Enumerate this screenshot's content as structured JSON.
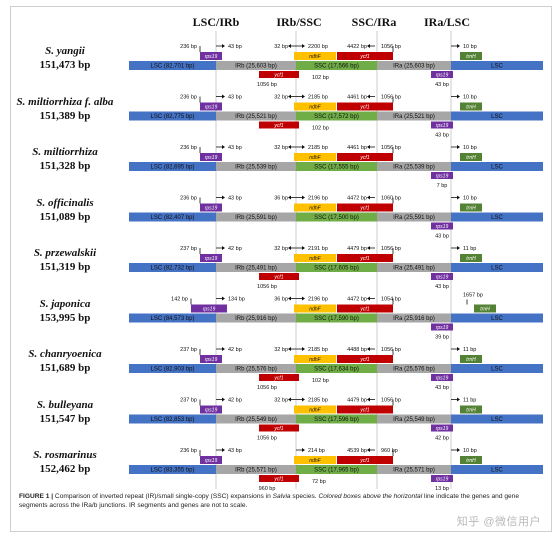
{
  "junctions": [
    "LSC/IRb",
    "IRb/SSC",
    "SSC/IRa",
    "IRa/LSC"
  ],
  "colors": {
    "lsc": "#4472c4",
    "ir": "#a6a6a6",
    "ssc": "#70ad47",
    "rps19": "#7030a0",
    "ndhF": "#ffc000",
    "ycf1": "#c00000",
    "trnH": "#548235"
  },
  "species": [
    {
      "name": "S. yangii",
      "size": "151,473 bp",
      "lsc": "LSC (82,701 bp)",
      "irb": "IRb (25,603 bp)",
      "ssc": "SSC (17,566 bp)",
      "ira": "IRa (25,603 bp)",
      "lsc2": "LSC",
      "rps19_left": "236 bp",
      "rps19_right": "43 bp",
      "irb_ssc_left": "32 bp",
      "ndhF": "2200 bp",
      "ycf1_frag": "1056 bp",
      "ycf1_frag_r": "102 bp",
      "ssc_ira_left": "4422 bp",
      "ssc_ira_right": "1056 bp",
      "rps19_ira": "43 bp",
      "trnH": "10 bp",
      "variant": "normal"
    },
    {
      "name": "S. miltiorrhiza f. alba",
      "size": "151,389 bp",
      "lsc": "LSC (82,775 bp)",
      "irb": "IRb (25,521 bp)",
      "ssc": "SSC (17,572 bp)",
      "ira": "IRa (25,521 bp)",
      "lsc2": "LSC",
      "rps19_left": "236 bp",
      "rps19_right": "43 bp",
      "irb_ssc_left": "32 bp",
      "ndhF": "2185 bp",
      "ycf1_frag": "",
      "ycf1_frag_r": "102 bp",
      "ssc_ira_left": "4461 bp",
      "ssc_ira_right": "1056 bp",
      "rps19_ira": "43 bp",
      "trnH": "10 bp",
      "variant": "normal"
    },
    {
      "name": "S. miltiorrhiza",
      "size": "151,328 bp",
      "lsc": "LSC (82,695 bp)",
      "irb": "IRb (25,539 bp)",
      "ssc": "SSC (17,555 bp)",
      "ira": "IRa (25,539 bp)",
      "lsc2": "LSC",
      "rps19_left": "236 bp",
      "rps19_right": "43 bp",
      "irb_ssc_left": "32 bp",
      "ndhF": "2185 bp",
      "ycf1_frag": "",
      "ycf1_frag_r": "",
      "ssc_ira_left": "4461 bp",
      "ssc_ira_right": "1056 bp",
      "rps19_ira": "7 bp",
      "trnH": "10 bp",
      "variant": "normal"
    },
    {
      "name": "S. officinalis",
      "size": "151,089 bp",
      "lsc": "LSC (82,407 bp)",
      "irb": "IRb (25,591 bp)",
      "ssc": "SSC (17,500 bp)",
      "ira": "IRa (25,591 bp)",
      "lsc2": "LSC",
      "rps19_left": "236 bp",
      "rps19_right": "43 bp",
      "irb_ssc_left": "36 bp",
      "ndhF": "2196 bp",
      "ycf1_frag": "",
      "ycf1_frag_r": "",
      "ssc_ira_left": "4472 bp",
      "ssc_ira_right": "1060 bp",
      "rps19_ira": "43 bp",
      "trnH": "10 bp",
      "variant": "normal"
    },
    {
      "name": "S. przewalskii",
      "size": "151,319 bp",
      "lsc": "LSC (82,732 bp)",
      "irb": "IRb (25,491 bp)",
      "ssc": "SSC (17,605 bp)",
      "ira": "IRa (25,491 bp)",
      "lsc2": "LSC",
      "rps19_left": "237 bp",
      "rps19_right": "42 bp",
      "irb_ssc_left": "32 bp",
      "ndhF": "2191 bp",
      "ycf1_frag": "1056 bp",
      "ycf1_frag_r": "",
      "ssc_ira_left": "4479 bp",
      "ssc_ira_right": "1056 bp",
      "rps19_ira": "43 bp",
      "trnH": "11 bp",
      "variant": "normal"
    },
    {
      "name": "S. japonica",
      "size": "153,995 bp",
      "lsc": "LSC (84,573 bp)",
      "irb": "IRb (25,916 bp)",
      "ssc": "SSC (17,590 bp)",
      "ira": "IRa (25,916 bp)",
      "lsc2": "LSC",
      "rps19_left": "142 bp",
      "rps19_right": "134 bp",
      "irb_ssc_left": "36 bp",
      "ndhF": "2196 bp",
      "ycf1_frag": "",
      "ycf1_frag_r": "",
      "ssc_ira_left": "4472 bp",
      "ssc_ira_right": "1054 bp",
      "rps19_ira": "39 bp",
      "trnH": "1657 bp",
      "variant": "japonica"
    },
    {
      "name": "S. chanryoenica",
      "size": "151,689 bp",
      "lsc": "LSC (82,903 bp)",
      "irb": "IRb (25,576 bp)",
      "ssc": "SSC (17,634 bp)",
      "ira": "IRa (25,576 bp)",
      "lsc2": "LSC",
      "rps19_left": "237 bp",
      "rps19_right": "42 bp",
      "irb_ssc_left": "32 bp",
      "ndhF": "2185 bp",
      "ycf1_frag": "1056 bp",
      "ycf1_frag_r": "102 bp",
      "ssc_ira_left": "4488 bp",
      "ssc_ira_right": "1056 bp",
      "rps19_ira": "43 bp",
      "trnH": "11 bp",
      "variant": "normal"
    },
    {
      "name": "S. bulleyana",
      "size": "151,547 bp",
      "lsc": "LSC (82,853 bp)",
      "irb": "IRb (25,549 bp)",
      "ssc": "SSC (17,596 bp)",
      "ira": "IRa (25,549 bp)",
      "lsc2": "LSC",
      "rps19_left": "237 bp",
      "rps19_right": "42 bp",
      "irb_ssc_left": "32 bp",
      "ndhF": "2185 bp",
      "ycf1_frag": "1056 bp",
      "ycf1_frag_r": "",
      "ssc_ira_left": "4479 bp",
      "ssc_ira_right": "1056 bp",
      "rps19_ira": "42 bp",
      "trnH": "11 bp",
      "variant": "normal"
    },
    {
      "name": "S. rosmarinus",
      "size": "152,462 bp",
      "lsc": "LSC (83,355 bp)",
      "irb": "IRb (25,571 bp)",
      "ssc": "SSC (17,965 bp)",
      "ira": "IRa (25,571 bp)",
      "lsc2": "LSC",
      "rps19_left": "236 bp",
      "rps19_right": "43 bp",
      "irb_ssc_left": "",
      "ndhF": "214 bp",
      "ycf1_frag": "960 bp",
      "ycf1_frag_r": "72 bp",
      "ssc_ira_left": "4539 bp",
      "ssc_ira_right": "960 bp",
      "rps19_ira": "13 bp",
      "trnH": "10 bp",
      "variant": "rosmarinus"
    }
  ],
  "gene_labels": {
    "rps19": "rps19",
    "ndhF": "ndhF",
    "ycf1": "ycf1",
    "trnH": "trnH"
  },
  "caption": {
    "label": "FIGURE 1 |",
    "text_a": " Comparison of inverted repeat (IR)/small single-copy (SSC) expansions in ",
    "genus": "Salvia",
    "text_b": " species. ",
    "italic_part": "Colored boxes above the horizontal",
    "text_c": " line indicate the genes and gene segments across the IRa/b junctions. IR segments and genes are not to scale."
  },
  "watermark": "知乎 @微信用户"
}
